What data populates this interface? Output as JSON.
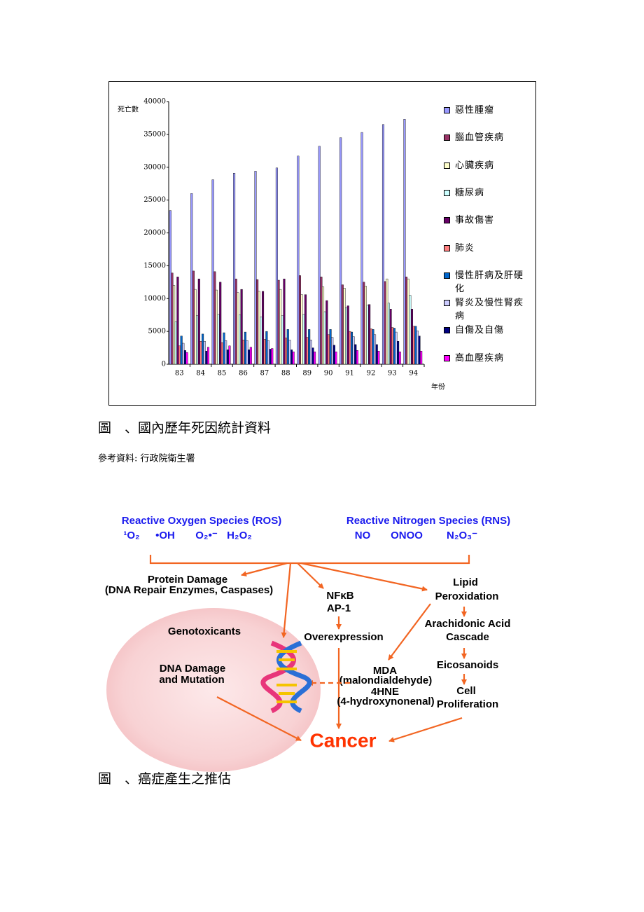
{
  "chart_data": {
    "type": "bar",
    "y_label": "死亡數",
    "x_label": "年份",
    "categories": [
      "83",
      "84",
      "85",
      "86",
      "87",
      "88",
      "89",
      "90",
      "91",
      "92",
      "93",
      "94"
    ],
    "ylim": [
      0,
      40000
    ],
    "yticks": [
      0,
      5000,
      10000,
      15000,
      20000,
      25000,
      30000,
      35000,
      40000
    ],
    "grid": false,
    "legend": "right",
    "series": [
      {
        "name": "惡性腫瘤",
        "color": "#9999ff",
        "values": [
          23400,
          26000,
          28100,
          29100,
          29400,
          29900,
          31700,
          33200,
          34500,
          35300,
          36500,
          37300
        ]
      },
      {
        "name": "腦血管疾病",
        "color": "#993366",
        "values": [
          13900,
          14200,
          14100,
          13000,
          12900,
          12800,
          13500,
          13300,
          12100,
          12500,
          12600,
          13300
        ]
      },
      {
        "name": "心臟疾病",
        "color": "#ffffcc",
        "values": [
          12000,
          11400,
          11300,
          10900,
          11100,
          11400,
          10600,
          11800,
          11600,
          11900,
          13000,
          13000
        ]
      },
      {
        "name": "糖尿病",
        "color": "#ccffff",
        "values": [
          6500,
          7400,
          7600,
          7500,
          7200,
          7400,
          7600,
          8000,
          8600,
          9000,
          9300,
          10500
        ]
      },
      {
        "name": "事故傷害",
        "color": "#660066",
        "values": [
          13300,
          13000,
          12500,
          11400,
          11100,
          13000,
          10600,
          9700,
          8900,
          9100,
          8400,
          8400
        ]
      },
      {
        "name": "肺炎",
        "color": "#ff8080",
        "values": [
          2800,
          3500,
          3300,
          3700,
          3800,
          4000,
          4100,
          4500,
          5000,
          5400,
          5600,
          5800
        ]
      },
      {
        "name": "慢性肝病及肝硬化",
        "color": "#0066cc",
        "values": [
          4300,
          4600,
          4800,
          4900,
          5000,
          5300,
          5300,
          5300,
          4900,
          5300,
          5500,
          5800
        ]
      },
      {
        "name": "腎炎及慢性腎疾病",
        "color": "#ccccff",
        "values": [
          3200,
          3500,
          3600,
          3600,
          3600,
          3700,
          3700,
          4100,
          4200,
          4500,
          4900,
          5100
        ]
      },
      {
        "name": "自傷及自傷",
        "color": "#000080",
        "values": [
          2100,
          2000,
          2200,
          2200,
          2300,
          2200,
          2500,
          2900,
          3000,
          3000,
          3500,
          4300
        ]
      },
      {
        "name": "高血壓疾病",
        "color": "#ff00ff",
        "values": [
          1800,
          2600,
          2800,
          2600,
          2400,
          1900,
          1900,
          1900,
          2100,
          2000,
          1900,
          2000
        ]
      }
    ]
  },
  "document": {
    "caption1": "圖　、國內歷年死因統計資料",
    "source": "參考資料: 行政院衛生署",
    "caption2": "圖　、癌症產生之推估"
  },
  "diagram": {
    "ros": {
      "title": "Reactive Oxygen Species (ROS)",
      "species": [
        "¹O₂",
        "•OH",
        "O₂•⁻",
        "H₂O₂"
      ]
    },
    "rns": {
      "title": "Reactive Nitrogen Species (RNS)",
      "species": [
        "NO",
        "ONOO",
        "N₂O₃⁻"
      ]
    },
    "protein": [
      "Protein Damage",
      "(DNA Repair Enzymes, Caspases)"
    ],
    "nfkb": [
      "NFκB",
      "AP-1",
      "Overexpression"
    ],
    "lipid": [
      "Lipid",
      "Peroxidation",
      "Arachidonic Acid",
      "Cascade",
      "Eicosanoids",
      "Cell",
      "Proliferation"
    ],
    "mda": [
      "MDA",
      "(malondialdehyde)",
      "4HNE",
      "(4-hydroxynonenal)"
    ],
    "geno": [
      "Genotoxicants",
      "DNA Damage",
      "and Mutation"
    ],
    "cancer": "Cancer"
  }
}
